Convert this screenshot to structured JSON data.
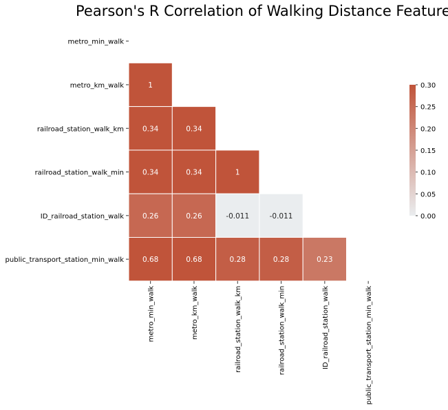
{
  "chart_data": {
    "type": "heatmap",
    "title": "Pearson's R Correlation of Walking Distance Features",
    "rows": [
      "metro_min_walk",
      "metro_km_walk",
      "railroad_station_walk_km",
      "railroad_station_walk_min",
      "ID_railroad_station_walk",
      "public_transport_station_min_walk"
    ],
    "columns": [
      "metro_min_walk",
      "metro_km_walk",
      "railroad_station_walk_km",
      "railroad_station_walk_min",
      "ID_railroad_station_walk",
      "public_transport_station_min_walk"
    ],
    "matrix": [
      [
        null,
        null,
        null,
        null,
        null,
        null
      ],
      [
        1,
        null,
        null,
        null,
        null,
        null
      ],
      [
        0.34,
        0.34,
        null,
        null,
        null,
        null
      ],
      [
        0.34,
        0.34,
        1,
        null,
        null,
        null
      ],
      [
        0.26,
        0.26,
        -0.011,
        -0.011,
        null,
        null
      ],
      [
        0.68,
        0.68,
        0.28,
        0.28,
        0.23,
        null
      ]
    ],
    "cell_labels": [
      [
        null,
        null,
        null,
        null,
        null,
        null
      ],
      [
        "1",
        null,
        null,
        null,
        null,
        null
      ],
      [
        "0.34",
        "0.34",
        null,
        null,
        null,
        null
      ],
      [
        "0.34",
        "0.34",
        "1",
        null,
        null,
        null
      ],
      [
        "0.26",
        "0.26",
        "-0.011",
        "-0.011",
        null,
        null
      ],
      [
        "0.68",
        "0.68",
        "0.28",
        "0.28",
        "0.23",
        null
      ]
    ],
    "mask": "upper triangle including diagonal",
    "colorbar": {
      "vmin": 0.0,
      "vmax": 0.3,
      "ticks": [
        "0.00",
        "0.05",
        "0.10",
        "0.15",
        "0.20",
        "0.25",
        "0.30"
      ],
      "low_color": "#eaedef",
      "high_color": "#c0543a"
    },
    "grid": false,
    "colorbar_position": "right"
  }
}
